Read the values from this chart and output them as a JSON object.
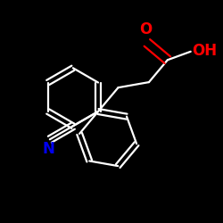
{
  "background_color": "#000000",
  "bond_color": "#ffffff",
  "atom_colors": {
    "O": "#ff0000",
    "N": "#0000ee",
    "C": "#ffffff",
    "H": "#ffffff"
  },
  "figsize": [
    2.5,
    2.5
  ],
  "dpi": 100,
  "xlim": [
    0.0,
    1.0
  ],
  "ylim": [
    0.0,
    1.0
  ],
  "bond_lw": 1.6,
  "ring_r": 0.13,
  "font_size": 12
}
